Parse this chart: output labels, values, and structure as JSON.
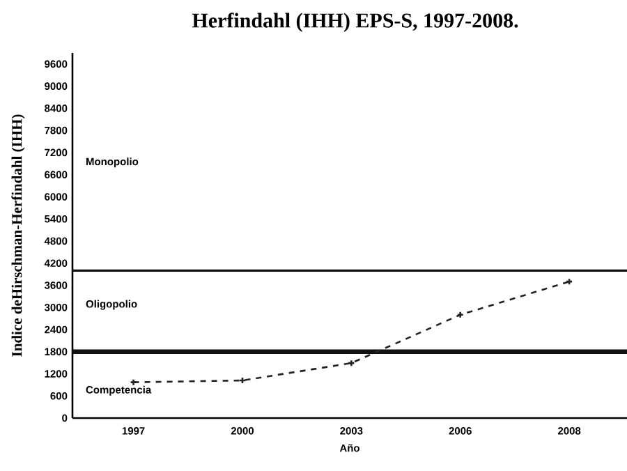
{
  "chart_data": {
    "type": "line",
    "title": "Herfindahl (IHH) EPS-S, 1997-2008.",
    "xlabel": "Año",
    "ylabel": "Indice deHirschman-Herfindahl (IHH)",
    "categories": [
      "1997",
      "2000",
      "2003",
      "2006",
      "2008"
    ],
    "values": [
      970,
      1020,
      1490,
      2800,
      3700
    ],
    "color": "#222222",
    "marker": "cross",
    "line_style": "dashed",
    "legend": false,
    "grid": false,
    "ylim": [
      0,
      9900
    ],
    "yticks": [
      0,
      600,
      1200,
      1800,
      2400,
      3000,
      3600,
      4200,
      4800,
      5400,
      6000,
      6600,
      7200,
      7800,
      8400,
      9000,
      9600
    ],
    "ref_lines": [
      {
        "axis": "y",
        "value": 1800,
        "color": "#111111"
      },
      {
        "axis": "y",
        "value": 4000,
        "color": "#111111"
      }
    ],
    "annotations": [
      "Monopolio",
      "Oligopolio",
      "Competencia"
    ]
  }
}
